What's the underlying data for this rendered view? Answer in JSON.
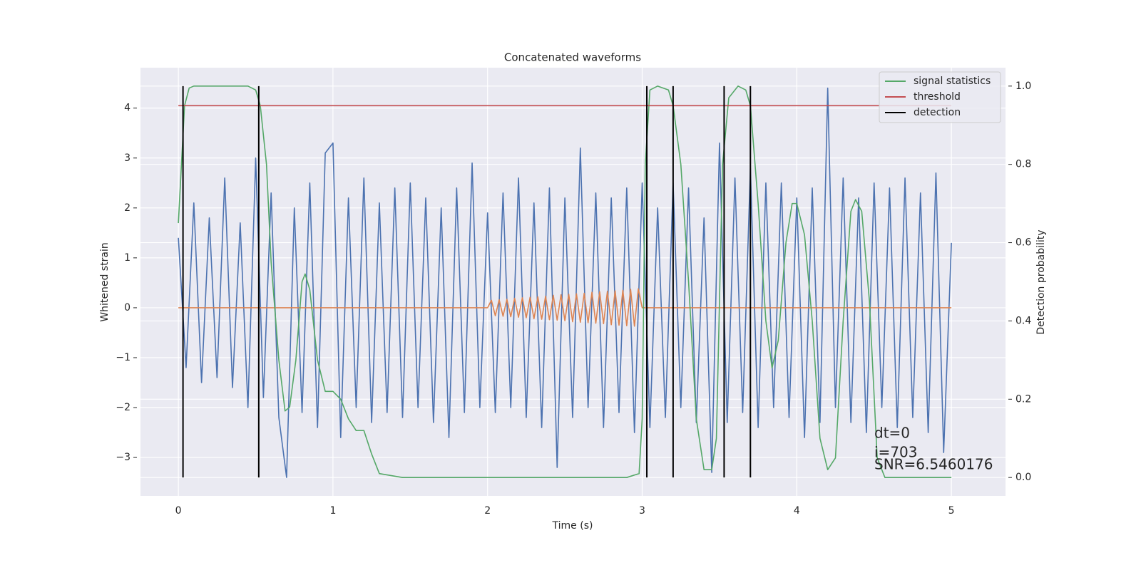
{
  "chart_data": {
    "type": "line",
    "title": "Concatenated waveforms",
    "xlabel": "Time (s)",
    "ylabel": "Whitened strain",
    "y2label": "Detection probability",
    "xlim": [
      -0.245,
      5.35
    ],
    "xticks": [
      0,
      1,
      2,
      3,
      4,
      5
    ],
    "ylim": [
      -3.77,
      4.81
    ],
    "yticks": [
      {
        "value": -3,
        "label": "−3"
      },
      {
        "value": -2,
        "label": "−2"
      },
      {
        "value": -1,
        "label": "−1"
      },
      0,
      1,
      2,
      3,
      4
    ],
    "y2lim": [
      -0.047,
      1.047
    ],
    "y2ticks": [
      {
        "value": 0,
        "label": "0.0"
      },
      0.2,
      0.4,
      0.6,
      0.8,
      {
        "value": 1,
        "label": "1.0"
      }
    ],
    "grid": true,
    "legend": "upper right",
    "series": [
      {
        "color": "#4c72b0",
        "x": [
          0,
          0.05,
          0.1,
          0.15,
          0.2,
          0.25,
          0.3,
          0.35,
          0.4,
          0.45,
          0.5,
          0.55,
          0.6,
          0.65,
          0.7,
          0.75,
          0.8,
          0.85,
          0.9,
          0.95,
          1.0,
          1.05,
          1.1,
          1.15,
          1.2,
          1.25,
          1.3,
          1.35,
          1.4,
          1.45,
          1.5,
          1.55,
          1.6,
          1.65,
          1.7,
          1.75,
          1.8,
          1.85,
          1.9,
          1.95,
          2.0,
          2.05,
          2.1,
          2.15,
          2.2,
          2.25,
          2.3,
          2.35,
          2.4,
          2.45,
          2.5,
          2.55,
          2.6,
          2.65,
          2.7,
          2.75,
          2.8,
          2.85,
          2.9,
          2.95,
          3.0,
          3.05,
          3.1,
          3.15,
          3.2,
          3.25,
          3.3,
          3.35,
          3.4,
          3.45,
          3.5,
          3.55,
          3.6,
          3.65,
          3.7,
          3.75,
          3.8,
          3.85,
          3.9,
          3.95,
          4.0,
          4.05,
          4.1,
          4.15,
          4.2,
          4.25,
          4.3,
          4.35,
          4.4,
          4.45,
          4.5,
          4.55,
          4.6,
          4.65,
          4.7,
          4.75,
          4.8,
          4.85,
          4.9,
          4.95,
          5.0
        ],
        "values": [
          1.4,
          -1.2,
          2.1,
          -1.5,
          1.8,
          -1.4,
          2.6,
          -1.6,
          1.7,
          -2.0,
          3.0,
          -1.8,
          2.3,
          -2.2,
          -3.4,
          2.0,
          -2.1,
          2.5,
          -2.4,
          3.1,
          3.3,
          -2.6,
          2.2,
          -2.0,
          2.6,
          -2.3,
          2.1,
          -2.1,
          2.4,
          -2.2,
          2.5,
          -2.0,
          2.2,
          -2.3,
          2.0,
          -2.6,
          2.4,
          -2.1,
          2.9,
          -2.0,
          1.9,
          -2.1,
          2.3,
          -2.0,
          2.6,
          -2.2,
          2.1,
          -2.4,
          2.4,
          -3.2,
          2.2,
          -2.2,
          3.2,
          -2.0,
          2.3,
          -2.4,
          2.2,
          -2.1,
          2.4,
          -2.5,
          2.5,
          -2.4,
          2.0,
          -2.2,
          2.5,
          -2.0,
          2.4,
          -2.3,
          1.8,
          -3.3,
          3.3,
          -2.3,
          2.6,
          -2.1,
          2.8,
          -2.4,
          2.5,
          -2.0,
          2.5,
          -2.2,
          2.2,
          -2.6,
          2.4,
          -2.3,
          4.4,
          -2.0,
          2.6,
          -2.3,
          2.2,
          -2.5,
          2.5,
          -2.0,
          2.4,
          -2.4,
          2.6,
          -2.2,
          2.3,
          -2.5,
          2.7,
          -2.9,
          1.3
        ]
      },
      {
        "color": "#dd8452",
        "x": [
          0,
          2.0,
          2.025,
          2.05,
          2.075,
          2.1,
          2.125,
          2.15,
          2.175,
          2.2,
          2.225,
          2.25,
          2.275,
          2.3,
          2.325,
          2.35,
          2.375,
          2.4,
          2.425,
          2.45,
          2.475,
          2.5,
          2.525,
          2.55,
          2.575,
          2.6,
          2.625,
          2.65,
          2.675,
          2.7,
          2.725,
          2.75,
          2.775,
          2.8,
          2.825,
          2.85,
          2.875,
          2.9,
          2.925,
          2.95,
          2.975,
          3.0,
          5.0
        ],
        "values": [
          0,
          0,
          0.15,
          -0.16,
          0.16,
          -0.17,
          0.17,
          -0.18,
          0.19,
          -0.19,
          0.2,
          -0.2,
          0.21,
          -0.22,
          0.22,
          -0.23,
          0.23,
          -0.24,
          0.25,
          -0.25,
          0.26,
          -0.26,
          0.27,
          -0.28,
          0.28,
          -0.29,
          0.29,
          -0.3,
          0.31,
          -0.31,
          0.32,
          -0.32,
          0.33,
          -0.34,
          0.34,
          -0.35,
          0.35,
          -0.36,
          0.37,
          -0.37,
          0.38,
          0,
          0
        ]
      },
      {
        "name": "signal statistics",
        "color": "#55a868",
        "axis": "y2",
        "x": [
          0,
          0.02,
          0.04,
          0.07,
          0.1,
          0.45,
          0.5,
          0.53,
          0.57,
          0.6,
          0.65,
          0.69,
          0.72,
          0.76,
          0.8,
          0.82,
          0.85,
          0.9,
          0.95,
          1.0,
          1.05,
          1.1,
          1.15,
          1.2,
          1.25,
          1.3,
          1.45,
          2.9,
          2.98,
          3.0,
          3.02,
          3.05,
          3.1,
          3.17,
          3.2,
          3.25,
          3.3,
          3.35,
          3.4,
          3.45,
          3.48,
          3.52,
          3.56,
          3.62,
          3.67,
          3.7,
          3.75,
          3.8,
          3.84,
          3.88,
          3.93,
          3.97,
          4.0,
          4.05,
          4.1,
          4.15,
          4.2,
          4.25,
          4.3,
          4.35,
          4.38,
          4.42,
          4.47,
          4.52,
          4.57,
          5.0
        ],
        "values": [
          0.65,
          0.8,
          0.95,
          0.995,
          1.0,
          1.0,
          0.99,
          0.95,
          0.8,
          0.55,
          0.3,
          0.17,
          0.18,
          0.3,
          0.5,
          0.52,
          0.48,
          0.3,
          0.22,
          0.22,
          0.2,
          0.15,
          0.12,
          0.12,
          0.06,
          0.01,
          0.0,
          0.0,
          0.01,
          0.15,
          0.8,
          0.99,
          1.0,
          0.99,
          0.95,
          0.8,
          0.5,
          0.15,
          0.02,
          0.02,
          0.1,
          0.8,
          0.97,
          1.0,
          0.99,
          0.95,
          0.7,
          0.4,
          0.28,
          0.35,
          0.6,
          0.7,
          0.7,
          0.62,
          0.4,
          0.1,
          0.02,
          0.05,
          0.4,
          0.68,
          0.71,
          0.68,
          0.45,
          0.05,
          0.0,
          0.0
        ]
      },
      {
        "name": "threshold",
        "color": "#c44e52",
        "axis": "y2",
        "x": [
          0,
          5
        ],
        "values": [
          0.95,
          0.95
        ]
      },
      {
        "name": "detection",
        "color": "#000000",
        "axis": "y2",
        "type": "vlines",
        "x": [
          0.03,
          0.52,
          3.03,
          3.2,
          3.53,
          3.7
        ],
        "ymin": 0,
        "ymax": 1
      }
    ],
    "annotations": [
      "dt=0",
      "i=703",
      "SNR=6.5460176"
    ]
  }
}
